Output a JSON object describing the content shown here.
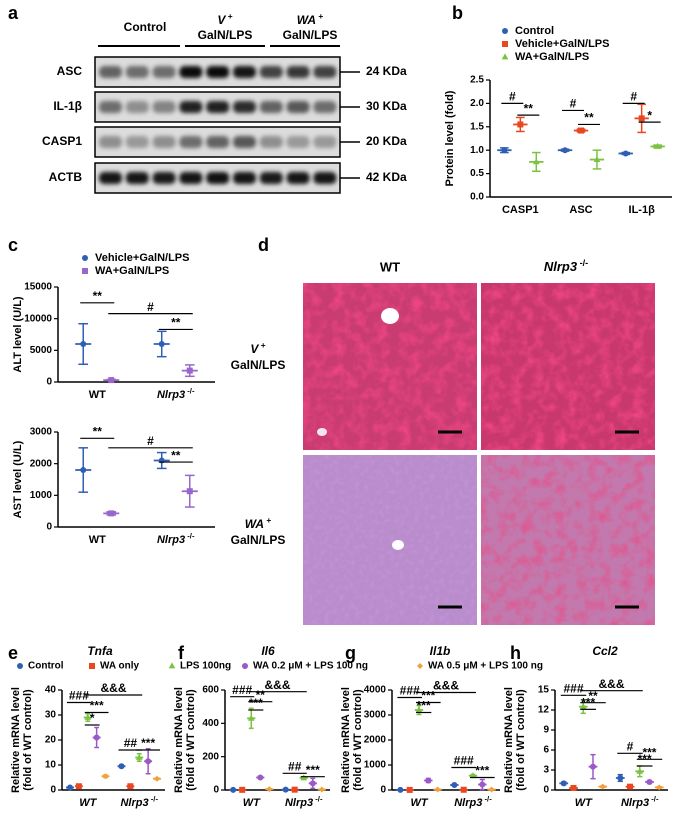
{
  "panel_labels": [
    "a",
    "b",
    "c",
    "d",
    "e",
    "f",
    "g",
    "h"
  ],
  "blot": {
    "groups": [
      [
        "Control"
      ],
      [
        "V +",
        "GalN/LPS"
      ],
      [
        "WA +",
        "GalN/LPS"
      ]
    ],
    "rows": [
      {
        "label": "ASC",
        "size": "24 KDa"
      },
      {
        "label": "IL-1β",
        "size": "30 KDa"
      },
      {
        "label": "CASP1",
        "size": "20 KDa"
      },
      {
        "label": "ACTB",
        "size": "42 KDa"
      }
    ]
  },
  "histology": {
    "columns": [
      "WT",
      "Nlrp3 -/-"
    ],
    "rows": [
      [
        "V +",
        "GalN/LPS"
      ],
      [
        "WA +",
        "GalN/LPS"
      ]
    ]
  },
  "legend": [
    {
      "name": "Control",
      "color": "#2f5fb3",
      "marker": "circle"
    },
    {
      "name": "WA only",
      "color": "#e8471f",
      "marker": "square"
    },
    {
      "name": "LPS 100ng",
      "color": "#7cc242",
      "marker": "triangle"
    },
    {
      "name": "WA 0.2 μM + LPS 100 ng",
      "color": "#9b59c8",
      "marker": "circle"
    },
    {
      "name": "WA 0.5 μM + LPS 100 ng",
      "color": "#f2a03d",
      "marker": "diamond"
    }
  ],
  "chart_data": [
    {
      "type": "dot",
      "ylabel": [
        "Protein level (fold)"
      ],
      "categories": [
        "CASP1",
        "ASC",
        "IL-1β"
      ],
      "ylim": [
        0,
        2.5
      ],
      "yticks": [
        {
          "value": 0,
          "label": "0.0"
        },
        0.5,
        {
          "value": 1,
          "label": "1.0"
        },
        1.5,
        {
          "value": 2,
          "label": "2.0"
        },
        2.5
      ],
      "series": [
        {
          "name": "Control",
          "color": "#2f5fb3",
          "marker": "circle",
          "values": [
            1.0,
            1.0,
            0.93
          ],
          "errors": [
            0.05,
            0.02,
            0.02
          ]
        },
        {
          "name": "Vehicle+GalN/LPS",
          "color": "#e8471f",
          "marker": "square",
          "values": [
            1.55,
            1.42,
            1.68
          ],
          "errors": [
            0.15,
            0.03,
            0.3
          ]
        },
        {
          "name": "WA+GalN/LPS",
          "color": "#7cc242",
          "marker": "triangle",
          "values": [
            0.75,
            0.8,
            1.08
          ],
          "errors": [
            0.2,
            0.2,
            0.03
          ]
        }
      ],
      "annotations": [
        "#",
        "**",
        "#",
        "**",
        "#",
        "*"
      ]
    },
    {
      "type": "dot",
      "ylabel": [
        "ALT level (U/L)"
      ],
      "categories": [
        "WT",
        "Nlrp3 -/-"
      ],
      "ylim": [
        0,
        15000
      ],
      "yticks": [
        0,
        5000,
        10000,
        15000
      ],
      "series": [
        {
          "name": "Vehicle+GalN/LPS",
          "color": "#2f5fb3",
          "marker": "circle",
          "values": [
            6000,
            6000
          ],
          "errors": [
            3200,
            2000
          ]
        },
        {
          "name": "WA+GalN/LPS",
          "color": "#9966cc",
          "marker": "square",
          "values": [
            300,
            1800
          ],
          "errors": [
            100,
            900
          ]
        }
      ],
      "annotations": [
        "**",
        "#",
        "**"
      ]
    },
    {
      "type": "dot",
      "ylabel": [
        "AST level (U/L)"
      ],
      "categories": [
        "WT",
        "Nlrp3 -/-"
      ],
      "ylim": [
        0,
        3000
      ],
      "yticks": [
        0,
        1000,
        2000,
        3000
      ],
      "series": [
        {
          "color": "#2f5fb3",
          "marker": "circle",
          "values": [
            1800,
            2100
          ],
          "errors": [
            700,
            250
          ]
        },
        {
          "color": "#9966cc",
          "marker": "square",
          "values": [
            430,
            1130
          ],
          "errors": [
            50,
            500
          ]
        }
      ],
      "annotations": [
        "**",
        "#",
        "**"
      ]
    },
    {
      "type": "dot",
      "title": "Tnfa",
      "ylabel": [
        "Relative mRNA level",
        "(fold of WT control)"
      ],
      "categories": [
        "WT",
        "Nlrp3 -/-"
      ],
      "ylim": [
        0,
        40
      ],
      "yticks": [
        0,
        10,
        20,
        30,
        40
      ],
      "series": [
        {
          "color": "#2f5fb3",
          "marker": "circle",
          "values": [
            1,
            9.5
          ],
          "errors": [
            0.2,
            0.5
          ]
        },
        {
          "color": "#e8471f",
          "marker": "square",
          "values": [
            1.5,
            1.5
          ],
          "errors": [
            0.3,
            0.2
          ]
        },
        {
          "color": "#7cc242",
          "marker": "triangle",
          "values": [
            29,
            13
          ],
          "errors": [
            1.5,
            1.5
          ]
        },
        {
          "color": "#9b59c8",
          "marker": "circle",
          "values": [
            21,
            11.5
          ],
          "errors": [
            4,
            5
          ]
        },
        {
          "color": "#f2a03d",
          "marker": "diamond",
          "values": [
            5.5,
            4.5
          ],
          "errors": [
            0.5,
            0.3
          ]
        }
      ],
      "annotations": [
        "###",
        "&&&",
        "***",
        "*",
        "##",
        "***"
      ]
    },
    {
      "type": "dot",
      "title": "Il6",
      "ylabel": [
        "Relative mRNA level",
        "(fold of WT control)"
      ],
      "categories": [
        "WT",
        "Nlrp3 -/-"
      ],
      "ylim": [
        0,
        600
      ],
      "yticks": [
        0,
        200,
        400,
        600
      ],
      "series": [
        {
          "color": "#2f5fb3",
          "marker": "circle",
          "values": [
            1,
            2
          ],
          "errors": [
            0.5,
            0.5
          ]
        },
        {
          "color": "#e8471f",
          "marker": "square",
          "values": [
            1,
            2
          ],
          "errors": [
            0.5,
            0.5
          ]
        },
        {
          "color": "#7cc242",
          "marker": "triangle",
          "values": [
            430,
            72
          ],
          "errors": [
            60,
            5
          ]
        },
        {
          "color": "#9b59c8",
          "marker": "circle",
          "values": [
            75,
            40
          ],
          "errors": [
            5,
            30
          ]
        },
        {
          "color": "#f2a03d",
          "marker": "diamond",
          "values": [
            5,
            3
          ],
          "errors": [
            1,
            1
          ]
        }
      ],
      "annotations": [
        "###",
        "&&&",
        "**",
        "***",
        "##",
        "***"
      ]
    },
    {
      "type": "dot",
      "title": "Il1b",
      "ylabel": [
        "Relative mRNA level",
        "(fold of WT control)"
      ],
      "categories": [
        "WT",
        "Nlrp3 -/-"
      ],
      "ylim": [
        0,
        4000
      ],
      "yticks": [
        0,
        1000,
        2000,
        3000,
        4000
      ],
      "series": [
        {
          "color": "#2f5fb3",
          "marker": "circle",
          "values": [
            3,
            200
          ],
          "errors": [
            1,
            20
          ]
        },
        {
          "color": "#e8471f",
          "marker": "square",
          "values": [
            3,
            10
          ],
          "errors": [
            1,
            3
          ]
        },
        {
          "color": "#7cc242",
          "marker": "triangle",
          "values": [
            3200,
            570
          ],
          "errors": [
            180,
            50
          ]
        },
        {
          "color": "#9b59c8",
          "marker": "circle",
          "values": [
            380,
            220
          ],
          "errors": [
            80,
            200
          ]
        },
        {
          "color": "#f2a03d",
          "marker": "diamond",
          "values": [
            20,
            20
          ],
          "errors": [
            5,
            5
          ]
        }
      ],
      "annotations": [
        "###",
        "&&&",
        "***",
        "***",
        "###",
        "***"
      ]
    },
    {
      "type": "dot",
      "title": "Ccl2",
      "ylabel": [
        "Relative mRNA level",
        "(fold of WT control)"
      ],
      "categories": [
        "WT",
        "Nlrp3 -/-"
      ],
      "ylim": [
        0,
        15
      ],
      "yticks": [
        0,
        3,
        6,
        9,
        12,
        15
      ],
      "series": [
        {
          "color": "#2f5fb3",
          "marker": "circle",
          "values": [
            1,
            1.8
          ],
          "errors": [
            0.2,
            0.5
          ]
        },
        {
          "color": "#e8471f",
          "marker": "square",
          "values": [
            0.3,
            0.5
          ],
          "errors": [
            0.1,
            0.1
          ]
        },
        {
          "color": "#7cc242",
          "marker": "triangle",
          "values": [
            12.5,
            2.8
          ],
          "errors": [
            1,
            0.8
          ]
        },
        {
          "color": "#9b59c8",
          "marker": "circle",
          "values": [
            3.5,
            1.2
          ],
          "errors": [
            1.8,
            0.2
          ]
        },
        {
          "color": "#f2a03d",
          "marker": "diamond",
          "values": [
            0.5,
            0.4
          ],
          "errors": [
            0.1,
            0.1
          ]
        }
      ],
      "annotations": [
        "###",
        "&&&",
        "**",
        "***",
        "#",
        "***",
        "***"
      ]
    }
  ]
}
